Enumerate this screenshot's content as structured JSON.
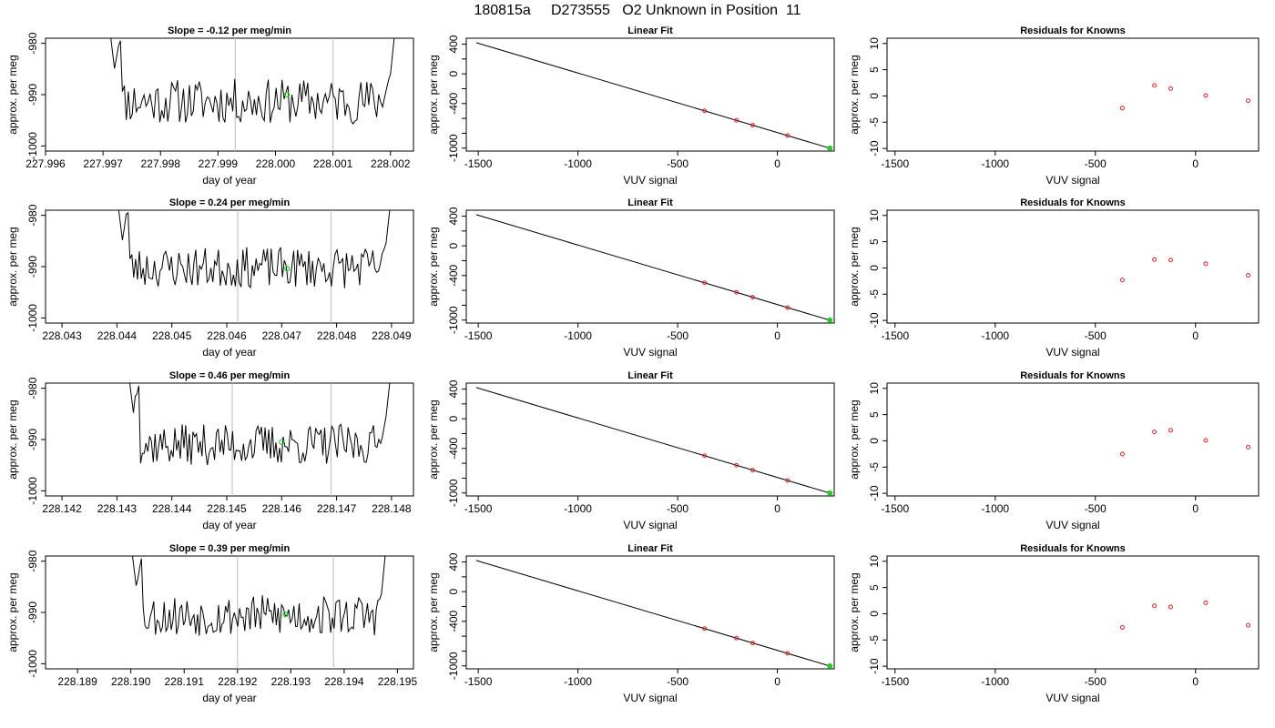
{
  "figure": {
    "title": "180815a     D273555   O2 Unknown in Position  11"
  },
  "colors": {
    "trace": "#000000",
    "vertical_markers": "#bbbbbb",
    "unknown_point": "#22cc22",
    "known_points": "#dd2222"
  },
  "chart_data": [
    {
      "type": "line",
      "title": "Slope =  -0.12  per meg/min",
      "xlabel": "day of year",
      "ylabel": "approx. per meg",
      "xlim": [
        227.996,
        228.0024
      ],
      "ylim": [
        -1001,
        -979
      ],
      "xticks": [
        "227.996",
        "227.997",
        "227.998",
        "227.999",
        "228.000",
        "228.001",
        "228.002"
      ],
      "yticks": [
        "-980",
        "-990",
        "-1000"
      ],
      "vlines": [
        227.9993,
        228.001
      ],
      "trace_range": [
        227.9972,
        228.002
      ],
      "trace_noise_amp": 2.2,
      "trace_seed": 11,
      "trace_mean": -991.3,
      "unknown_point": {
        "x": 228.0002,
        "y": -990.0
      }
    },
    {
      "type": "scatter",
      "title": "Linear Fit",
      "xlabel": "VUV signal",
      "ylabel": "approx. per meg",
      "xlim": [
        -1560,
        285
      ],
      "ylim": [
        -1040,
        480
      ],
      "xticks": [
        "-1500",
        "-1000",
        "-500",
        "0"
      ],
      "yticks": [
        "400",
        "0",
        "-400",
        "-1000"
      ],
      "fit_line": [
        [
          -1510,
          420
        ],
        [
          263,
          -1002
        ]
      ],
      "known_points": [
        [
          -365,
          -498
        ],
        [
          -205,
          -626
        ],
        [
          -124,
          -692
        ],
        [
          51,
          -832
        ]
      ],
      "unknown_point": [
        263,
        -1002
      ]
    },
    {
      "type": "scatter",
      "title": "Residuals for Knowns",
      "xlabel": "VUV signal",
      "ylabel": "approx. per meg",
      "xlim": [
        -1540,
        315
      ],
      "ylim": [
        -10.5,
        11
      ],
      "xticks": [
        "-1500",
        "-1000",
        "-500",
        "0"
      ],
      "yticks": [
        "10",
        "5",
        "0",
        "-5",
        "-10"
      ],
      "points": [
        [
          -365,
          -2.3
        ],
        [
          -205,
          2.0
        ],
        [
          -124,
          1.4
        ],
        [
          51,
          0.1
        ],
        [
          263,
          -0.9
        ]
      ]
    },
    {
      "type": "line",
      "title": "Slope =  0.24  per meg/min",
      "xlabel": "day of year",
      "ylabel": "approx. per meg",
      "xlim": [
        228.0427,
        228.0494
      ],
      "ylim": [
        -1001,
        -979
      ],
      "xticks": [
        "228.043",
        "228.044",
        "228.045",
        "228.046",
        "228.047",
        "228.048",
        "228.049"
      ],
      "yticks": [
        "-980",
        "-990",
        "-1000"
      ],
      "vlines": [
        228.0462,
        228.0479
      ],
      "trace_range": [
        228.0441,
        228.0489
      ],
      "trace_noise_amp": 2.0,
      "trace_seed": 23,
      "trace_mean": -990.2,
      "unknown_point": {
        "x": 228.0471,
        "y": -990.4
      }
    },
    {
      "type": "scatter",
      "title": "Linear Fit",
      "xlabel": "VUV signal",
      "ylabel": "approx. per meg",
      "xlim": [
        -1560,
        285
      ],
      "ylim": [
        -1040,
        480
      ],
      "xticks": [
        "-1500",
        "-1000",
        "-500",
        "0"
      ],
      "yticks": [
        "400",
        "0",
        "-400",
        "-1000"
      ],
      "fit_line": [
        [
          -1510,
          420
        ],
        [
          263,
          -1002
        ]
      ],
      "known_points": [
        [
          -365,
          -498
        ],
        [
          -205,
          -626
        ],
        [
          -124,
          -692
        ],
        [
          51,
          -832
        ]
      ],
      "unknown_point": [
        263,
        -1002
      ]
    },
    {
      "type": "scatter",
      "title": "Residuals for Knowns",
      "xlabel": "VUV signal",
      "ylabel": "approx. per meg",
      "xlim": [
        -1540,
        315
      ],
      "ylim": [
        -10.5,
        11
      ],
      "xticks": [
        "-1500",
        "-1000",
        "-500",
        "0"
      ],
      "yticks": [
        "10",
        "5",
        "0",
        "-5",
        "-10"
      ],
      "points": [
        [
          -365,
          -2.3
        ],
        [
          -205,
          1.6
        ],
        [
          -124,
          1.5
        ],
        [
          51,
          0.8
        ],
        [
          263,
          -1.4
        ]
      ]
    },
    {
      "type": "line",
      "title": "Slope =  0.46  per meg/min",
      "xlabel": "day of year",
      "ylabel": "approx. per meg",
      "xlim": [
        228.1417,
        228.1484
      ],
      "ylim": [
        -1001,
        -979
      ],
      "xticks": [
        "228.142",
        "228.143",
        "228.144",
        "228.145",
        "228.146",
        "228.147",
        "228.148"
      ],
      "yticks": [
        "-980",
        "-990",
        "-1000"
      ],
      "vlines": [
        228.1451,
        228.1469
      ],
      "trace_range": [
        228.1433,
        228.1479
      ],
      "trace_noise_amp": 2.0,
      "trace_seed": 37,
      "trace_mean": -991.0,
      "unknown_point": {
        "x": 228.146,
        "y": -990.5
      }
    },
    {
      "type": "scatter",
      "title": "Linear Fit",
      "xlabel": "VUV signal",
      "ylabel": "approx. per meg",
      "xlim": [
        -1560,
        285
      ],
      "ylim": [
        -1040,
        480
      ],
      "xticks": [
        "-1500",
        "-1000",
        "-500",
        "0"
      ],
      "yticks": [
        "400",
        "0",
        "-400",
        "-1000"
      ],
      "fit_line": [
        [
          -1510,
          420
        ],
        [
          263,
          -1002
        ]
      ],
      "known_points": [
        [
          -365,
          -498
        ],
        [
          -205,
          -626
        ],
        [
          -124,
          -692
        ],
        [
          51,
          -832
        ]
      ],
      "unknown_point": [
        263,
        -1002
      ]
    },
    {
      "type": "scatter",
      "title": "Residuals for Knowns",
      "xlabel": "VUV signal",
      "ylabel": "approx. per meg",
      "xlim": [
        -1540,
        315
      ],
      "ylim": [
        -10.5,
        11
      ],
      "xticks": [
        "-1500",
        "-1000",
        "-500",
        "0"
      ],
      "yticks": [
        "10",
        "5",
        "0",
        "-5",
        "-10"
      ],
      "points": [
        [
          -365,
          -2.5
        ],
        [
          -205,
          1.7
        ],
        [
          -124,
          2.0
        ],
        [
          51,
          0.1
        ],
        [
          263,
          -1.2
        ]
      ]
    },
    {
      "type": "line",
      "title": "Slope =  0.39  per meg/min",
      "xlabel": "day of year",
      "ylabel": "approx. per meg",
      "xlim": [
        228.1884,
        228.1953
      ],
      "ylim": [
        -1001,
        -979
      ],
      "xticks": [
        "228.189",
        "228.190",
        "228.191",
        "228.192",
        "228.193",
        "228.194",
        "228.195"
      ],
      "yticks": [
        "-980",
        "-990",
        "-1000"
      ],
      "vlines": [
        228.192,
        228.1938
      ],
      "trace_range": [
        228.1901,
        228.1947
      ],
      "trace_noise_amp": 2.0,
      "trace_seed": 53,
      "trace_mean": -990.6,
      "unknown_point": {
        "x": 228.1929,
        "y": -990.4
      }
    },
    {
      "type": "scatter",
      "title": "Linear Fit",
      "xlabel": "VUV signal",
      "ylabel": "approx. per meg",
      "xlim": [
        -1560,
        285
      ],
      "ylim": [
        -1040,
        480
      ],
      "xticks": [
        "-1500",
        "-1000",
        "-500",
        "0"
      ],
      "yticks": [
        "400",
        "0",
        "-400",
        "-1000"
      ],
      "fit_line": [
        [
          -1510,
          420
        ],
        [
          263,
          -1002
        ]
      ],
      "known_points": [
        [
          -365,
          -498
        ],
        [
          -205,
          -626
        ],
        [
          -124,
          -692
        ],
        [
          51,
          -832
        ]
      ],
      "unknown_point": [
        263,
        -1002
      ]
    },
    {
      "type": "scatter",
      "title": "Residuals for Knowns",
      "xlabel": "VUV signal",
      "ylabel": "approx. per meg",
      "xlim": [
        -1540,
        315
      ],
      "ylim": [
        -10.5,
        11
      ],
      "xticks": [
        "-1500",
        "-1000",
        "-500",
        "0"
      ],
      "yticks": [
        "10",
        "5",
        "0",
        "-5",
        "-10"
      ],
      "points": [
        [
          -365,
          -2.6
        ],
        [
          -205,
          1.5
        ],
        [
          -124,
          1.3
        ],
        [
          51,
          2.1
        ],
        [
          263,
          -2.2
        ]
      ]
    }
  ]
}
